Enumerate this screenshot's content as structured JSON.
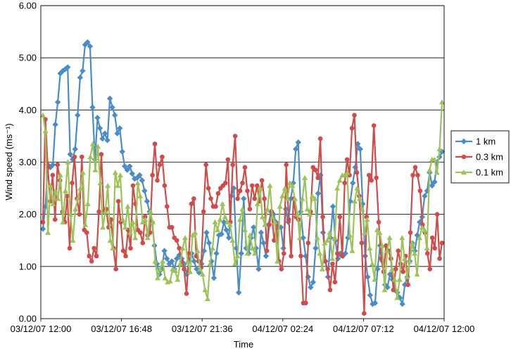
{
  "chart_data": {
    "type": "line",
    "xlabel": "Time",
    "ylabel": "Wind speed (ms⁻¹)",
    "ylim": [
      0,
      6
    ],
    "y_ticks": [
      "0.00",
      "1.00",
      "2.00",
      "3.00",
      "4.00",
      "5.00",
      "6.00"
    ],
    "x_ticks": [
      "03/12/07 12:00",
      "03/12/07 16:48",
      "03/12/07 21:36",
      "04/12/07 02:24",
      "04/12/07 07:12",
      "04/12/07 12:00"
    ],
    "grid": "horizontal",
    "legend_position": "right",
    "series": [
      {
        "name": "1 km",
        "color": "#4A8CC8",
        "marker": "diamond",
        "values": [
          1.72,
          2.15,
          2.95,
          2.9,
          2.95,
          3.72,
          4.15,
          4.7,
          4.75,
          4.78,
          4.82,
          3.15,
          3.05,
          3.25,
          3.9,
          4.62,
          4.75,
          5.25,
          5.3,
          5.22,
          4.05,
          3.05,
          3.85,
          3.65,
          3.45,
          3.55,
          3.42,
          4.22,
          4.05,
          3.9,
          3.55,
          3.65,
          3.2,
          2.92,
          2.85,
          2.92,
          2.78,
          2.68,
          2.7,
          2.75,
          2.65,
          2.45,
          2.25,
          2.05,
          1.85,
          1.4,
          1.05,
          0.85,
          0.95,
          1.3,
          1.15,
          1.05,
          1.1,
          0.95,
          1.15,
          1.22,
          1.15,
          1.05,
          0.85,
          1.1,
          1.25,
          1.1,
          0.95,
          0.88,
          1.05,
          1.3,
          1.65,
          1.45,
          1.1,
          0.78,
          1.25,
          1.6,
          1.62,
          1.85,
          1.7,
          1.55,
          2.35,
          2.5,
          1.35,
          0.5,
          1.25,
          2.3,
          1.35,
          1.25,
          1.55,
          1.75,
          1.35,
          0.95,
          1.65,
          1.45,
          1.2,
          1.8,
          2.05,
          2.0,
          1.85,
          1.75,
          1.75,
          1.35,
          2.1,
          1.85,
          2.3,
          2.6,
          3.25,
          3.38,
          2.05,
          1.55,
          1.2,
          0.8,
          0.6,
          0.7,
          1.35,
          2.4,
          2.75,
          1.65,
          1.1,
          0.8,
          1.55,
          2.15,
          1.5,
          1.15,
          1.25,
          1.2,
          1.25,
          1.55,
          2.25,
          2.6,
          2.9,
          3.35,
          3.25,
          2.2,
          1.2,
          0.8,
          0.45,
          0.28,
          0.3,
          0.95,
          1.4,
          1.1,
          0.65,
          0.6,
          0.85,
          0.75,
          0.55,
          0.5,
          0.4,
          0.28,
          0.65,
          0.8,
          1.1,
          1.45,
          1.3,
          1.6,
          1.85,
          1.95,
          2.35,
          2.45,
          2.8,
          2.55,
          2.62,
          3.0,
          3.1,
          3.2
        ],
        "labels": {
          "name": "1 km"
        }
      },
      {
        "name": "0.3 km",
        "color": "#D04C4A",
        "marker": "circle",
        "values": [
          1.85,
          3.82,
          2.9,
          2.25,
          2.75,
          1.9,
          2.95,
          2.65,
          2.05,
          1.85,
          2.35,
          1.35,
          2.6,
          3.1,
          2.3,
          2.0,
          3.1,
          1.7,
          1.65,
          1.2,
          1.1,
          1.35,
          1.2,
          2.05,
          3.15,
          2.05,
          2.1,
          1.75,
          1.9,
          1.35,
          0.95,
          2.25,
          1.85,
          1.3,
          1.2,
          1.7,
          1.35,
          2.55,
          2.2,
          1.7,
          1.65,
          1.45,
          1.95,
          1.6,
          1.65,
          2.75,
          3.35,
          2.65,
          2.95,
          3.1,
          2.55,
          2.15,
          1.75,
          1.75,
          1.55,
          1.5,
          1.35,
          1.1,
          0.95,
          0.48,
          1.25,
          2.2,
          2.3,
          1.2,
          1.1,
          0.98,
          2.05,
          2.95,
          2.5,
          2.3,
          2.15,
          2.15,
          2.4,
          2.5,
          2.55,
          2.6,
          3.05,
          1.85,
          2.95,
          3.5,
          2.3,
          2.45,
          2.6,
          2.9,
          2.45,
          2.1,
          2.55,
          2.3,
          2.55,
          2.25,
          2.65,
          2.3,
          1.3,
          1.8,
          2.05,
          1.5,
          1.8,
          1.1,
          0.95,
          1.25,
          2.95,
          1.9,
          1.2,
          2.3,
          1.95,
          1.9,
          1.2,
          0.3,
          0.3,
          1.45,
          2.05,
          2.9,
          2.85,
          2.7,
          3.45,
          1.95,
          1.1,
          0.95,
          0.55,
          1.05,
          0.7,
          1.25,
          1.95,
          1.2,
          2.6,
          3.05,
          2.75,
          3.65,
          3.9,
          2.8,
          2.35,
          1.45,
          0.1,
          1.95,
          2.75,
          2.65,
          3.7,
          2.7,
          1.85,
          1.15,
          0.9,
          1.4,
          1.3,
          1.15,
          0.55,
          0.95,
          1.3,
          1.05,
          0.9,
          1.2,
          0.65,
          1.65,
          2.75,
          2.9,
          2.75,
          2.45,
          1.8,
          1.65,
          1.25,
          0.95,
          1.55,
          1.35,
          2.0,
          1.15,
          1.45
        ],
        "labels": {
          "name": "0.3 km"
        }
      },
      {
        "name": "0.1 km",
        "color": "#9BC35A",
        "marker": "triangle",
        "values": [
          3.9,
          3.6,
          1.65,
          2.55,
          2.2,
          2.45,
          2.3,
          2.75,
          1.85,
          2.45,
          3.0,
          2.0,
          1.5,
          2.1,
          2.3,
          2.5,
          2.8,
          1.8,
          2.2,
          3.1,
          3.35,
          2.85,
          3.3,
          2.6,
          1.75,
          2.05,
          2.55,
          1.5,
          1.35,
          2.8,
          2.55,
          2.75,
          1.9,
          1.75,
          2.15,
          1.65,
          1.85,
          1.55,
          2.6,
          2.35,
          1.85,
          1.9,
          1.55,
          2.05,
          1.85,
          1.1,
          0.78,
          0.95,
          1.1,
          0.78,
          0.7,
          0.72,
          0.95,
          0.92,
          0.75,
          1.05,
          1.35,
          1.55,
          1.1,
          0.9,
          1.6,
          1.65,
          1.3,
          0.95,
          0.85,
          0.55,
          0.38,
          1.05,
          1.35,
          1.85,
          1.7,
          1.9,
          2.2,
          1.95,
          1.85,
          1.8,
          1.5,
          1.05,
          1.2,
          1.9,
          2.1,
          1.7,
          1.25,
          1.6,
          1.35,
          1.25,
          2.2,
          2.5,
          1.95,
          1.8,
          2.1,
          2.55,
          1.95,
          1.85,
          1.1,
          2.15,
          2.35,
          2.5,
          2.3,
          2.6,
          2.55,
          2.3,
          2.0,
          1.55,
          2.3,
          2.7,
          2.1,
          2.0,
          2.35,
          2.3,
          1.55,
          1.25,
          0.95,
          1.45,
          1.5,
          1.65,
          1.15,
          1.55,
          2.5,
          2.65,
          2.75,
          2.75,
          2.8,
          1.6,
          1.3,
          2.25,
          2.5,
          2.3,
          2.1,
          1.65,
          1.9,
          1.35,
          1.05,
          0.75,
          1.7,
          1.65,
          1.4,
          0.55,
          1.3,
          1.55,
          0.95,
          0.75,
          0.4,
          0.75,
          1.55,
          1.15,
          0.8,
          1.1,
          1.45,
          1.25,
          0.85,
          1.55,
          1.75,
          1.7,
          1.35,
          2.85,
          3.05,
          3.05,
          2.8,
          3.25,
          4.15
        ],
        "labels": {
          "name": "0.1 km"
        }
      }
    ]
  }
}
